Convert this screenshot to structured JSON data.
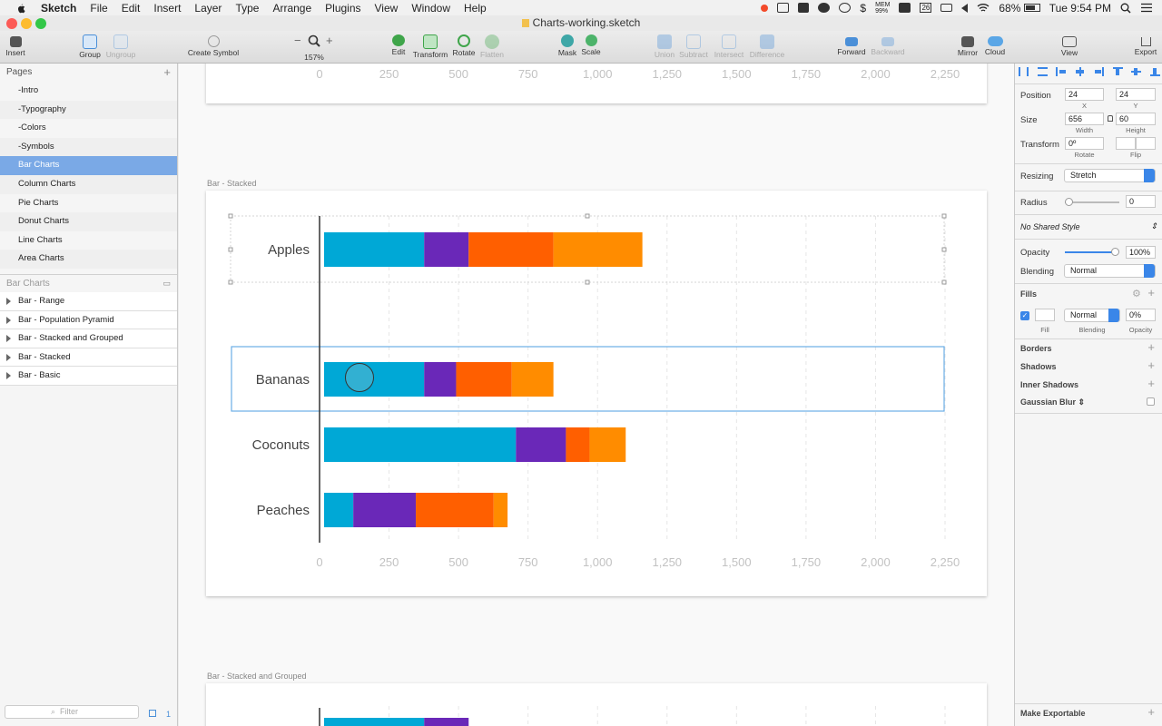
{
  "menubar": {
    "items": [
      "Sketch",
      "File",
      "Edit",
      "Insert",
      "Layer",
      "Type",
      "Arrange",
      "Plugins",
      "View",
      "Window",
      "Help"
    ],
    "status": {
      "battery": "68%",
      "time": "Tue 9:54 PM",
      "mem": "MEM\n99%",
      "date_badge": "26"
    }
  },
  "window": {
    "title": "Charts-working.sketch"
  },
  "toolbar": {
    "insert": "Insert",
    "group": "Group",
    "ungroup": "Ungroup",
    "create_symbol": "Create Symbol",
    "zoom": "157%",
    "zoom_minus": "−",
    "zoom_plus": "+",
    "edit": "Edit",
    "transform": "Transform",
    "rotate": "Rotate",
    "flatten": "Flatten",
    "mask": "Mask",
    "scale": "Scale",
    "union": "Union",
    "subtract": "Subtract",
    "intersect": "Intersect",
    "difference": "Difference",
    "forward": "Forward",
    "backward": "Backward",
    "mirror": "Mirror",
    "cloud": "Cloud",
    "view": "View",
    "export": "Export"
  },
  "pages": {
    "header": "Pages",
    "items": [
      "-Intro",
      "-Typography",
      "-Colors",
      "-Symbols",
      "Bar Charts",
      "Column Charts",
      "Pie Charts",
      "Donut Charts",
      "Line Charts",
      "Area Charts"
    ],
    "selected": 4
  },
  "layers": {
    "header": "Bar Charts",
    "items": [
      "Bar - Range",
      "Bar - Population Pyramid",
      "Bar - Stacked and Grouped",
      "Bar - Stacked",
      "Bar - Basic"
    ],
    "filter_placeholder": "Filter",
    "footer_count": "1"
  },
  "canvas": {
    "artboard_labels": {
      "stacked": "Bar - Stacked",
      "stacked_grouped": "Bar - Stacked and Grouped"
    },
    "top_axis_ticks": [
      "0",
      "250",
      "500",
      "750",
      "1,000",
      "1,250",
      "1,500",
      "1,750",
      "2,000",
      "2,250"
    ]
  },
  "chart_data": {
    "type": "bar",
    "orientation": "horizontal",
    "stacked": true,
    "categories": [
      "Apples",
      "Bananas",
      "Coconuts",
      "Peaches"
    ],
    "series": [
      {
        "color": "#00a8d6",
        "values": [
          360,
          360,
          690,
          105
        ]
      },
      {
        "color": "#6a28b8",
        "values": [
          160,
          115,
          180,
          225
        ]
      },
      {
        "color": "#ff5f00",
        "values": [
          305,
          200,
          85,
          280
        ]
      },
      {
        "color": "#ff8c00",
        "values": [
          320,
          150,
          130,
          50
        ]
      }
    ],
    "xlim": [
      0,
      2250
    ],
    "xticks": [
      "0",
      "250",
      "500",
      "750",
      "1,000",
      "1,250",
      "1,500",
      "1,750",
      "2,000",
      "2,250"
    ],
    "grid": true
  },
  "inspector": {
    "position": {
      "label": "Position",
      "x": "24",
      "y": "24",
      "x_sub": "X",
      "y_sub": "Y"
    },
    "size": {
      "label": "Size",
      "w": "656",
      "h": "60",
      "w_sub": "Width",
      "h_sub": "Height"
    },
    "transform": {
      "label": "Transform",
      "rotate": "0º",
      "rotate_sub": "Rotate",
      "flip_sub": "Flip"
    },
    "resizing": {
      "label": "Resizing",
      "value": "Stretch"
    },
    "radius": {
      "label": "Radius",
      "value": "0"
    },
    "shared_style": "No Shared Style",
    "opacity": {
      "label": "Opacity",
      "value": "100%",
      "level": 1.0
    },
    "blending": {
      "label": "Blending",
      "value": "Normal"
    },
    "fills": {
      "header": "Fills",
      "blending": "Normal",
      "opacity": "0%",
      "fill_sub": "Fill",
      "blending_sub": "Blending",
      "opacity_sub": "Opacity"
    },
    "sections": [
      "Borders",
      "Shadows",
      "Inner Shadows",
      "Gaussian Blur"
    ],
    "make_exportable": "Make Exportable"
  }
}
